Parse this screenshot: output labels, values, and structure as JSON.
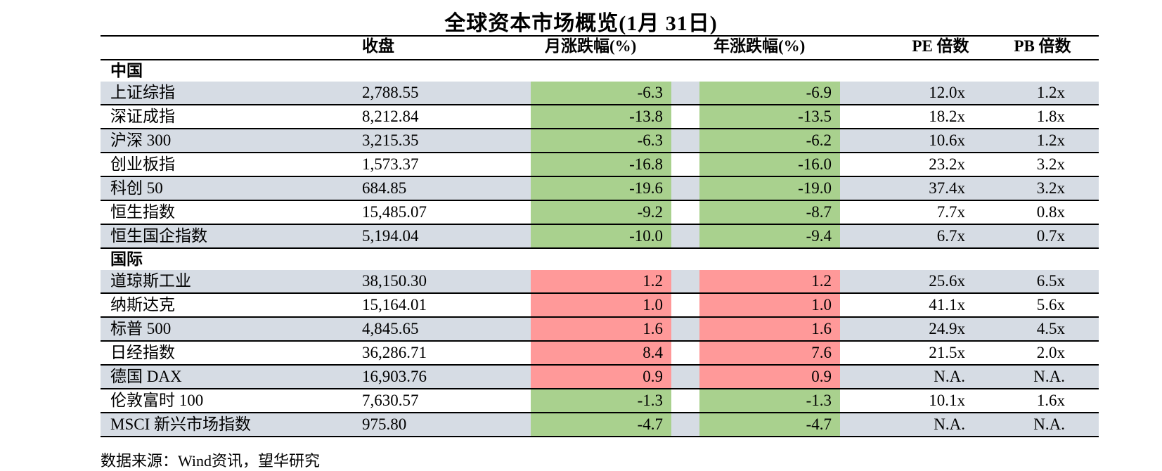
{
  "title": "全球资本市场概览(1月 31日)",
  "headers": {
    "close": "收盘",
    "month_change": "月涨跌幅(%)",
    "year_change": "年涨跌幅(%)",
    "pe": "PE 倍数",
    "pb": "PB 倍数"
  },
  "sections": [
    {
      "label": "中国",
      "rows": [
        {
          "name": "上证综指",
          "close": "2,788.55",
          "month": "-6.3",
          "year": "-6.9",
          "pe": "12.0x",
          "pb": "1.2x"
        },
        {
          "name": "深证成指",
          "close": "8,212.84",
          "month": "-13.8",
          "year": "-13.5",
          "pe": "18.2x",
          "pb": "1.8x"
        },
        {
          "name": "沪深 300",
          "close": "3,215.35",
          "month": "-6.3",
          "year": "-6.2",
          "pe": "10.6x",
          "pb": "1.2x"
        },
        {
          "name": "创业板指",
          "close": "1,573.37",
          "month": "-16.8",
          "year": "-16.0",
          "pe": "23.2x",
          "pb": "3.2x"
        },
        {
          "name": "科创 50",
          "close": "684.85",
          "month": "-19.6",
          "year": "-19.0",
          "pe": "37.4x",
          "pb": "3.2x"
        },
        {
          "name": "恒生指数",
          "close": "15,485.07",
          "month": "-9.2",
          "year": "-8.7",
          "pe": "7.7x",
          "pb": "0.8x"
        },
        {
          "name": "恒生国企指数",
          "close": "5,194.04",
          "month": "-10.0",
          "year": "-9.4",
          "pe": "6.7x",
          "pb": "0.7x"
        }
      ]
    },
    {
      "label": "国际",
      "rows": [
        {
          "name": "道琼斯工业",
          "close": "38,150.30",
          "month": "1.2",
          "year": "1.2",
          "pe": "25.6x",
          "pb": "6.5x"
        },
        {
          "name": "纳斯达克",
          "close": "15,164.01",
          "month": "1.0",
          "year": "1.0",
          "pe": "41.1x",
          "pb": "5.6x"
        },
        {
          "name": "标普 500",
          "close": "4,845.65",
          "month": "1.6",
          "year": "1.6",
          "pe": "24.9x",
          "pb": "4.5x"
        },
        {
          "name": "日经指数",
          "close": "36,286.71",
          "month": "8.4",
          "year": "7.6",
          "pe": "21.5x",
          "pb": "2.0x"
        },
        {
          "name": "德国 DAX",
          "close": "16,903.76",
          "month": "0.9",
          "year": "0.9",
          "pe": "N.A.",
          "pb": "N.A."
        },
        {
          "name": "伦敦富时 100",
          "close": "7,630.57",
          "month": "-1.3",
          "year": "-1.3",
          "pe": "10.1x",
          "pb": "1.6x"
        },
        {
          "name": "MSCI 新兴市场指数",
          "close": "975.80",
          "month": "-4.7",
          "year": "-4.7",
          "pe": "N.A.",
          "pb": "N.A."
        }
      ]
    }
  ],
  "source": "数据来源：Wind资讯，望华研究",
  "colors": {
    "row_shade": "#d6dce4",
    "negative": "#a9d18e",
    "positive": "#ff9999"
  }
}
